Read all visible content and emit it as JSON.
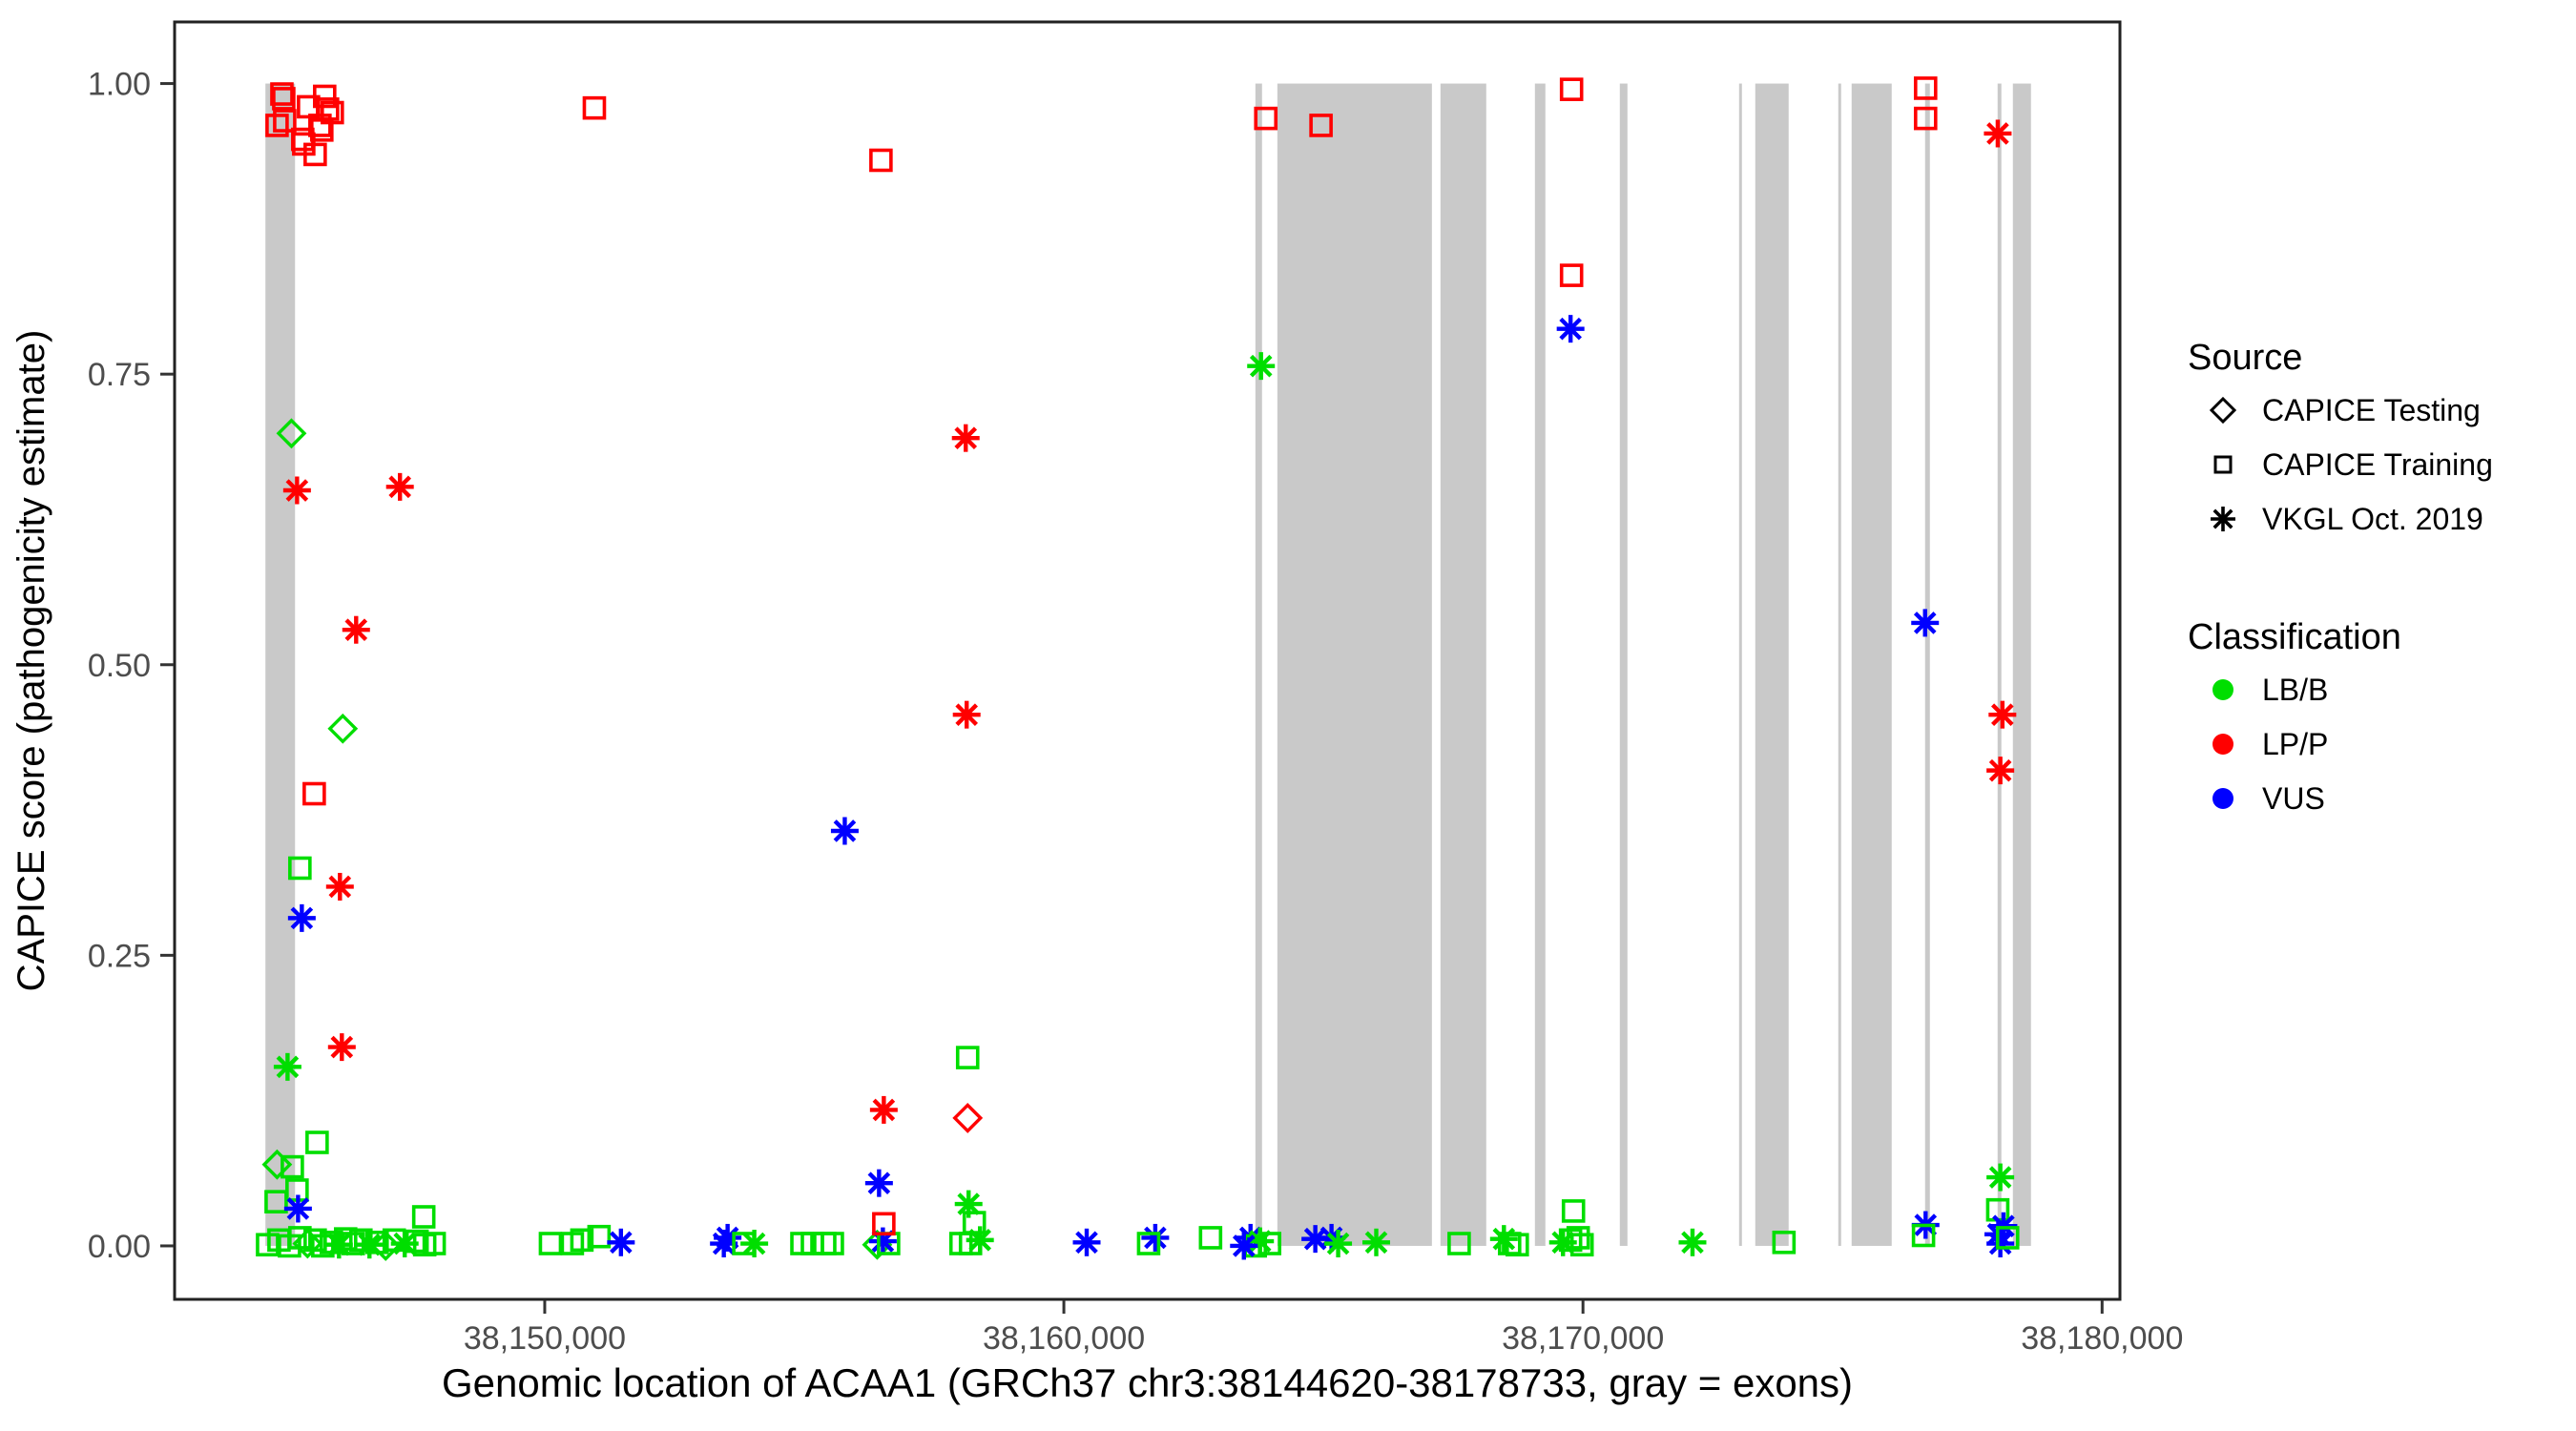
{
  "chart_data": {
    "type": "scatter",
    "title": "",
    "xlabel": "Genomic location of ACAA1 (GRCh37 chr3:38144620-38178733, gray = exons)",
    "ylabel": "CAPICE score (pathogenicity estimate)",
    "xlim": [
      38142870,
      38180344
    ],
    "ylim": [
      -0.046,
      1.053
    ],
    "grid": false,
    "x_ticks": [
      {
        "pos": 38150000,
        "label": "38,150,000"
      },
      {
        "pos": 38160000,
        "label": "38,160,000"
      },
      {
        "pos": 38170000,
        "label": "38,170,000"
      },
      {
        "pos": 38180000,
        "label": "38,180,000"
      }
    ],
    "y_ticks": [
      {
        "value": 0.0,
        "label": "0.00"
      },
      {
        "value": 0.25,
        "label": "0.25"
      },
      {
        "value": 0.5,
        "label": "0.50"
      },
      {
        "value": 0.75,
        "label": "0.75"
      },
      {
        "value": 1.0,
        "label": "1.00"
      }
    ],
    "exon_note": "gray vertical bands = exons, drawn from score 0 to score 1",
    "exon_color": "#C9C9C9",
    "exons": [
      [
        38144620,
        38145190
      ],
      [
        38163690,
        38163818
      ],
      [
        38164113,
        38167090
      ],
      [
        38167255,
        38168137
      ],
      [
        38169074,
        38169276
      ],
      [
        38170710,
        38170857
      ],
      [
        38173007,
        38173062
      ],
      [
        38173319,
        38173962
      ],
      [
        38174918,
        38174973
      ],
      [
        38175175,
        38175947
      ],
      [
        38176590,
        38176682
      ],
      [
        38177987,
        38178060
      ],
      [
        38178281,
        38178630
      ]
    ],
    "source_codes": {
      "T": "CAPICE Testing",
      "R": "CAPICE Training",
      "V": "VKGL Oct. 2019"
    },
    "class_codes": {
      "B": "LB/B",
      "P": "LP/P",
      "U": "VUS"
    },
    "shape_by_source": {
      "T": "diamond",
      "R": "square",
      "V": "asterisk"
    },
    "points_columns": [
      "genomic_position",
      "capice_score",
      "source",
      "classification"
    ],
    "points": [
      [
        38144937,
        0.991,
        "R",
        "P"
      ],
      [
        38144973,
        0.987,
        "R",
        "P"
      ],
      [
        38144991,
        0.968,
        "R",
        "P"
      ],
      [
        38144844,
        0.964,
        "R",
        "P"
      ],
      [
        38145450,
        0.98,
        "R",
        "P"
      ],
      [
        38145761,
        0.989,
        "R",
        "P"
      ],
      [
        38145817,
        0.978,
        "R",
        "P"
      ],
      [
        38145908,
        0.975,
        "R",
        "P"
      ],
      [
        38145670,
        0.964,
        "R",
        "P"
      ],
      [
        38145706,
        0.96,
        "R",
        "P"
      ],
      [
        38145339,
        0.952,
        "R",
        "P"
      ],
      [
        38145358,
        0.948,
        "R",
        "P"
      ],
      [
        38145578,
        0.939,
        "R",
        "P"
      ],
      [
        38150956,
        0.979,
        "R",
        "P"
      ],
      [
        38156477,
        0.934,
        "R",
        "P"
      ],
      [
        38145121,
        0.699,
        "T",
        "B"
      ],
      [
        38145229,
        0.65,
        "V",
        "P"
      ],
      [
        38147211,
        0.653,
        "V",
        "P"
      ],
      [
        38146367,
        0.53,
        "V",
        "P"
      ],
      [
        38146110,
        0.445,
        "T",
        "B"
      ],
      [
        38145560,
        0.389,
        "R",
        "P"
      ],
      [
        38145284,
        0.325,
        "R",
        "B"
      ],
      [
        38146055,
        0.309,
        "V",
        "P"
      ],
      [
        38145321,
        0.282,
        "V",
        "U"
      ],
      [
        38146092,
        0.171,
        "V",
        "P"
      ],
      [
        38145046,
        0.154,
        "V",
        "B"
      ],
      [
        38145615,
        0.089,
        "R",
        "B"
      ],
      [
        38144844,
        0.07,
        "T",
        "B"
      ],
      [
        38145138,
        0.068,
        "R",
        "B"
      ],
      [
        38145229,
        0.048,
        "R",
        "B"
      ],
      [
        38144826,
        0.038,
        "R",
        "B"
      ],
      [
        38145248,
        0.032,
        "V",
        "U"
      ],
      [
        38144661,
        0.001,
        "R",
        "B"
      ],
      [
        38144881,
        0.005,
        "R",
        "B"
      ],
      [
        38145083,
        0.0,
        "R",
        "B"
      ],
      [
        38145284,
        0.007,
        "R",
        "B"
      ],
      [
        38145431,
        0.002,
        "T",
        "B"
      ],
      [
        38145578,
        0.005,
        "R",
        "B"
      ],
      [
        38145725,
        0.0,
        "R",
        "B"
      ],
      [
        38145890,
        0.003,
        "R",
        "B"
      ],
      [
        38146037,
        0.001,
        "V",
        "B"
      ],
      [
        38146165,
        0.006,
        "R",
        "B"
      ],
      [
        38146312,
        0.002,
        "R",
        "B"
      ],
      [
        38146459,
        0.005,
        "R",
        "B"
      ],
      [
        38146624,
        0.001,
        "V",
        "B"
      ],
      [
        38146771,
        0.003,
        "R",
        "B"
      ],
      [
        38146936,
        0.0,
        "T",
        "B"
      ],
      [
        38147101,
        0.005,
        "R",
        "B"
      ],
      [
        38147303,
        0.002,
        "V",
        "B"
      ],
      [
        38147541,
        0.004,
        "R",
        "B"
      ],
      [
        38147688,
        0.001,
        "R",
        "B"
      ],
      [
        38147871,
        0.002,
        "R",
        "B"
      ],
      [
        38147670,
        0.025,
        "R",
        "B"
      ],
      [
        38150110,
        0.002,
        "R",
        "B"
      ],
      [
        38150532,
        0.002,
        "R",
        "B"
      ],
      [
        38150716,
        0.005,
        "R",
        "B"
      ],
      [
        38151046,
        0.008,
        "R",
        "B"
      ],
      [
        38151468,
        0.003,
        "V",
        "U"
      ],
      [
        38153450,
        0.002,
        "V",
        "U"
      ],
      [
        38153523,
        0.007,
        "V",
        "U"
      ],
      [
        38153835,
        0.002,
        "R",
        "B"
      ],
      [
        38154037,
        0.002,
        "V",
        "B"
      ],
      [
        38154954,
        0.002,
        "R",
        "B"
      ],
      [
        38155156,
        0.002,
        "R",
        "B"
      ],
      [
        38155394,
        0.002,
        "R",
        "B"
      ],
      [
        38155541,
        0.002,
        "R",
        "B"
      ],
      [
        38156404,
        0.001,
        "T",
        "B"
      ],
      [
        38156514,
        0.004,
        "V",
        "U"
      ],
      [
        38156624,
        0.002,
        "R",
        "B"
      ],
      [
        38156532,
        0.019,
        "R",
        "P"
      ],
      [
        38156440,
        0.054,
        "V",
        "U"
      ],
      [
        38156532,
        0.117,
        "V",
        "P"
      ],
      [
        38158018,
        0.002,
        "R",
        "B"
      ],
      [
        38158202,
        0.002,
        "R",
        "B"
      ],
      [
        38158385,
        0.005,
        "V",
        "B"
      ],
      [
        38158275,
        0.02,
        "R",
        "B"
      ],
      [
        38158165,
        0.036,
        "V",
        "B"
      ],
      [
        38158147,
        0.11,
        "T",
        "P"
      ],
      [
        38158147,
        0.162,
        "R",
        "B"
      ],
      [
        38160440,
        0.003,
        "V",
        "U"
      ],
      [
        38161761,
        0.007,
        "V",
        "U"
      ],
      [
        38161633,
        0.002,
        "R",
        "B"
      ],
      [
        38155780,
        0.357,
        "V",
        "U"
      ],
      [
        38158110,
        0.695,
        "V",
        "P"
      ],
      [
        38158128,
        0.457,
        "V",
        "P"
      ],
      [
        38163798,
        0.757,
        "V",
        "B"
      ],
      [
        38163890,
        0.97,
        "R",
        "P"
      ],
      [
        38164954,
        0.964,
        "R",
        "P"
      ],
      [
        38169780,
        0.995,
        "R",
        "P"
      ],
      [
        38169780,
        0.835,
        "R",
        "P"
      ],
      [
        38169761,
        0.789,
        "V",
        "U"
      ],
      [
        38176590,
        0.536,
        "V",
        "U"
      ],
      [
        38176600,
        0.996,
        "R",
        "P"
      ],
      [
        38176600,
        0.97,
        "R",
        "P"
      ],
      [
        38177990,
        0.957,
        "V",
        "P"
      ],
      [
        38178080,
        0.457,
        "V",
        "P"
      ],
      [
        38178040,
        0.409,
        "V",
        "P"
      ],
      [
        38178040,
        0.059,
        "V",
        "B"
      ],
      [
        38177990,
        0.031,
        "R",
        "B"
      ],
      [
        38178100,
        0.017,
        "V",
        "U"
      ],
      [
        38178000,
        0.01,
        "V",
        "U"
      ],
      [
        38178040,
        0.002,
        "V",
        "U"
      ],
      [
        38178180,
        0.007,
        "R",
        "B"
      ],
      [
        38176600,
        0.018,
        "V",
        "U"
      ],
      [
        38176560,
        0.009,
        "R",
        "B"
      ],
      [
        38162826,
        0.007,
        "R",
        "B"
      ],
      [
        38163596,
        0.007,
        "V",
        "U"
      ],
      [
        38163780,
        0.004,
        "V",
        "B"
      ],
      [
        38163688,
        0.0,
        "R",
        "B"
      ],
      [
        38163963,
        0.002,
        "R",
        "B"
      ],
      [
        38163468,
        0.0,
        "V",
        "U"
      ],
      [
        38164844,
        0.006,
        "V",
        "U"
      ],
      [
        38165156,
        0.007,
        "V",
        "U"
      ],
      [
        38165284,
        0.002,
        "V",
        "B"
      ],
      [
        38166018,
        0.003,
        "V",
        "B"
      ],
      [
        38167615,
        0.002,
        "R",
        "B"
      ],
      [
        38168477,
        0.006,
        "V",
        "B"
      ],
      [
        38168587,
        0.002,
        "R",
        "B"
      ],
      [
        38168734,
        0.001,
        "R",
        "B"
      ],
      [
        38169615,
        0.003,
        "V",
        "B"
      ],
      [
        38169761,
        0.005,
        "R",
        "B"
      ],
      [
        38169908,
        0.007,
        "R",
        "B"
      ],
      [
        38169982,
        0.001,
        "R",
        "B"
      ],
      [
        38169817,
        0.03,
        "R",
        "B"
      ],
      [
        38172110,
        0.003,
        "V",
        "B"
      ],
      [
        38173872,
        0.003,
        "R",
        "B"
      ]
    ]
  },
  "legend": {
    "source": {
      "title": "Source",
      "items": [
        {
          "label": "CAPICE Testing",
          "shape": "diamond"
        },
        {
          "label": "CAPICE Training",
          "shape": "square"
        },
        {
          "label": "VKGL Oct. 2019",
          "shape": "asterisk"
        }
      ]
    },
    "classification": {
      "title": "Classification",
      "items": [
        {
          "label": "LB/B",
          "color": "#00DE00"
        },
        {
          "label": "LP/P",
          "color": "#FF0000"
        },
        {
          "label": "VUS",
          "color": "#0000FF"
        }
      ]
    }
  },
  "colors": {
    "LB/B": "#00DE00",
    "LP/P": "#FF0000",
    "VUS": "#0000FF",
    "axis_text": "#4D4D4D",
    "axis_title": "#000000",
    "panel_border": "#222222",
    "tick_mark": "#333333",
    "exon": "#C9C9C9"
  }
}
